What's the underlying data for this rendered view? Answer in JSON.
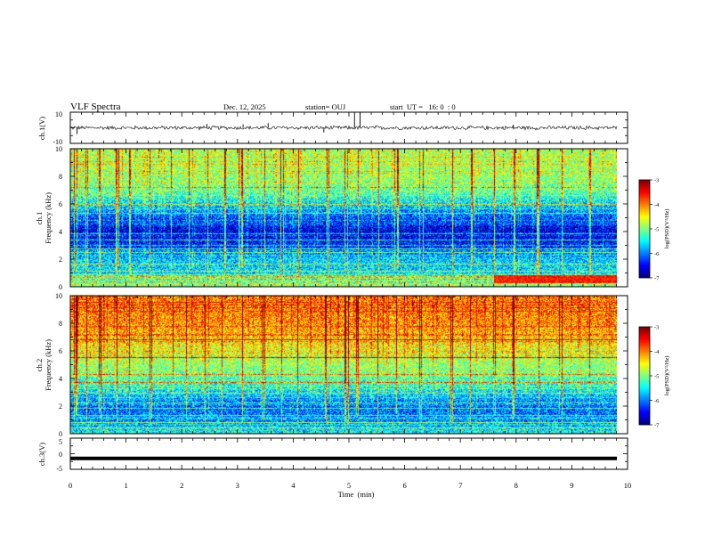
{
  "header": {
    "title": "VLF Spectra",
    "date": "Dec. 12, 2025",
    "station": "station= OUJ",
    "start_ut": "start  UT =   16: 0  : 0"
  },
  "chart_data": [
    {
      "type": "line",
      "name": "ch1-waveform",
      "ylabel": "ch.1(V)",
      "ylim": [
        -10,
        10
      ],
      "yticks": [
        "10",
        "-10"
      ],
      "xlim": [
        0,
        10
      ],
      "baseline": 0,
      "noise_amplitude": 1.2,
      "spikes": [
        {
          "x": 0.12,
          "y": -4
        },
        {
          "x": 2.45,
          "y": 2.5
        },
        {
          "x": 3.1,
          "y": 2.2
        },
        {
          "x": 3.55,
          "y": 3
        },
        {
          "x": 4.55,
          "y": -3
        },
        {
          "x": 5.1,
          "y": 10
        },
        {
          "x": 5.2,
          "y": 10
        },
        {
          "x": 7.95,
          "y": 2
        }
      ]
    },
    {
      "type": "heatmap",
      "name": "ch1-spectrogram",
      "ylabel_top": "ch.1",
      "ylabel": "Frequency (kHz)",
      "ylim": [
        0,
        10
      ],
      "yticks": [
        "0",
        "2",
        "4",
        "6",
        "8",
        "10"
      ],
      "xlim": [
        0,
        10
      ],
      "colorbar": {
        "label": "log(PSD)(V²/Hz)",
        "min": -7,
        "max": -3,
        "ticks": [
          "-3",
          "-4",
          "-5",
          "-6",
          "-7"
        ]
      },
      "profile_khz": [
        0,
        1,
        2,
        3,
        4,
        5,
        6,
        7,
        8,
        9,
        10
      ],
      "profile_log_psd": [
        -5.0,
        -5.6,
        -5.7,
        -6.4,
        -6.7,
        -6.2,
        -5.6,
        -5.1,
        -4.9,
        -4.8,
        -4.8
      ],
      "hum_lines_khz": [
        0.35,
        0.55,
        0.7,
        1.1,
        1.6,
        2.45,
        2.7,
        3.0,
        3.35,
        3.8,
        5.3,
        6.0,
        7.2
      ],
      "bursts_min": [
        0.08,
        0.3,
        0.55,
        0.85,
        1.05,
        1.45,
        1.8,
        2.1,
        2.45,
        2.75,
        3.05,
        3.45,
        3.8,
        4.1,
        4.6,
        4.95,
        5.15,
        5.5,
        5.85,
        6.3,
        6.85,
        7.2,
        7.6,
        7.95,
        8.4,
        8.8,
        9.3
      ],
      "lowband_enhancement": {
        "x_from": 7.6,
        "x_to": 9.8,
        "khz_from": 0.2,
        "khz_to": 0.8,
        "log_psd": -3.6
      }
    },
    {
      "type": "heatmap",
      "name": "ch2-spectrogram",
      "ylabel_top": "ch.2",
      "ylabel": "Frequency (kHz)",
      "ylim": [
        0,
        10
      ],
      "yticks": [
        "0",
        "2",
        "4",
        "6",
        "8",
        "10"
      ],
      "xlim": [
        0,
        10
      ],
      "colorbar": {
        "label": "log(PSD)(V²/Hz)",
        "min": -7,
        "max": -3,
        "ticks": [
          "-3",
          "-4",
          "-5",
          "-6",
          "-7"
        ]
      },
      "profile_khz": [
        0,
        1,
        2,
        3,
        4,
        5,
        6,
        7,
        8,
        9,
        10
      ],
      "profile_log_psd": [
        -5.4,
        -6.0,
        -6.1,
        -5.6,
        -5.2,
        -4.9,
        -4.6,
        -4.3,
        -4.1,
        -4.0,
        -4.0
      ],
      "hum_lines_khz": [
        0.4,
        0.75,
        1.3,
        1.85,
        2.2,
        2.95,
        3.7,
        4.3,
        5.5,
        6.8
      ],
      "bursts_min": [
        0.08,
        0.3,
        0.55,
        0.85,
        1.05,
        1.45,
        1.8,
        2.1,
        2.45,
        2.75,
        3.05,
        3.45,
        3.8,
        4.1,
        4.6,
        4.95,
        5.15,
        5.5,
        5.85,
        6.3,
        6.85,
        7.2,
        7.6,
        7.95,
        8.4,
        8.8,
        9.3
      ]
    },
    {
      "type": "line",
      "name": "ch3-waveform",
      "ylabel": "ch.3(V)",
      "xlabel": "Time  (min)",
      "ylim": [
        -5,
        5
      ],
      "yticks": [
        "5",
        "0",
        "-5"
      ],
      "xlim": [
        0,
        10
      ],
      "xticks": [
        "0",
        "1",
        "2",
        "3",
        "4",
        "5",
        "6",
        "7",
        "8",
        "9",
        "10"
      ],
      "level": -1.5
    }
  ],
  "colors": {
    "frame": "#000000",
    "colormap": [
      "#00007f",
      "#0000ff",
      "#007fff",
      "#00ffff",
      "#7fff7f",
      "#ffff00",
      "#ff7f00",
      "#ff0000",
      "#7f0000"
    ]
  }
}
